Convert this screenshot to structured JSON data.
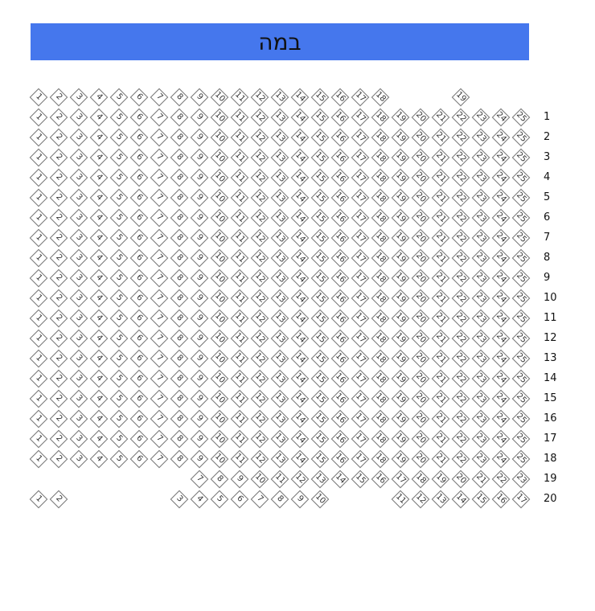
{
  "stage": {
    "label": "במה"
  },
  "rows": [
    {
      "label": "",
      "seats": [
        "1",
        "2",
        "3",
        "4",
        "5",
        "6",
        "7",
        "8",
        "9",
        "10",
        "11",
        "12",
        "13",
        "14",
        "15",
        "16",
        "17",
        "18",
        null,
        null,
        null,
        "19"
      ]
    },
    {
      "label": "1",
      "seats": [
        "1",
        "2",
        "3",
        "4",
        "5",
        "6",
        "7",
        "8",
        "9",
        "10",
        "11",
        "12",
        "13",
        "14",
        "15",
        "16",
        "17",
        "18",
        "19",
        "20",
        "21",
        "22",
        "23",
        "24",
        "25"
      ]
    },
    {
      "label": "2",
      "seats": [
        "1",
        "2",
        "3",
        "4",
        "5",
        "6",
        "7",
        "8",
        "9",
        "10",
        "11",
        "12",
        "13",
        "14",
        "15",
        "16",
        "17",
        "18",
        "19",
        "20",
        "21",
        "22",
        "23",
        "24",
        "25"
      ]
    },
    {
      "label": "3",
      "seats": [
        "1",
        "2",
        "3",
        "4",
        "5",
        "6",
        "7",
        "8",
        "9",
        "10",
        "11",
        "12",
        "13",
        "14",
        "15",
        "16",
        "17",
        "18",
        "19",
        "20",
        "21",
        "22",
        "23",
        "24",
        "25"
      ]
    },
    {
      "label": "4",
      "seats": [
        "1",
        "2",
        "3",
        "4",
        "5",
        "6",
        "7",
        "8",
        "9",
        "10",
        "11",
        "12",
        "13",
        "14",
        "15",
        "16",
        "17",
        "18",
        "19",
        "20",
        "21",
        "22",
        "23",
        "24",
        "25"
      ]
    },
    {
      "label": "5",
      "seats": [
        "1",
        "2",
        "3",
        "4",
        "5",
        "6",
        "7",
        "8",
        "9",
        "10",
        "11",
        "12",
        "13",
        "14",
        "15",
        "16",
        "17",
        "18",
        "19",
        "20",
        "21",
        "22",
        "23",
        "24",
        "25"
      ]
    },
    {
      "label": "6",
      "seats": [
        "1",
        "2",
        "3",
        "4",
        "5",
        "6",
        "7",
        "8",
        "9",
        "10",
        "11",
        "12",
        "13",
        "14",
        "15",
        "16",
        "17",
        "18",
        "19",
        "20",
        "21",
        "22",
        "23",
        "24",
        "25"
      ]
    },
    {
      "label": "7",
      "seats": [
        "1",
        "2",
        "3",
        "4",
        "5",
        "6",
        "7",
        "8",
        "9",
        "10",
        "11",
        "12",
        "13",
        "14",
        "15",
        "16",
        "17",
        "18",
        "19",
        "20",
        "21",
        "22",
        "23",
        "24",
        "25"
      ]
    },
    {
      "label": "8",
      "seats": [
        "1",
        "2",
        "3",
        "4",
        "5",
        "6",
        "7",
        "8",
        "9",
        "10",
        "11",
        "12",
        "13",
        "14",
        "15",
        "16",
        "17",
        "18",
        "19",
        "20",
        "21",
        "22",
        "23",
        "24",
        "25"
      ]
    },
    {
      "label": "9",
      "seats": [
        "1",
        "2",
        "3",
        "4",
        "5",
        "6",
        "7",
        "8",
        "9",
        "10",
        "11",
        "12",
        "13",
        "14",
        "15",
        "16",
        "17",
        "18",
        "19",
        "20",
        "21",
        "22",
        "23",
        "24",
        "25"
      ]
    },
    {
      "label": "10",
      "seats": [
        "1",
        "2",
        "3",
        "4",
        "5",
        "6",
        "7",
        "8",
        "9",
        "10",
        "11",
        "12",
        "13",
        "14",
        "15",
        "16",
        "17",
        "18",
        "19",
        "20",
        "21",
        "22",
        "23",
        "24",
        "25"
      ]
    },
    {
      "label": "11",
      "seats": [
        "1",
        "2",
        "3",
        "4",
        "5",
        "6",
        "7",
        "8",
        "9",
        "10",
        "11",
        "12",
        "13",
        "14",
        "15",
        "16",
        "17",
        "18",
        "19",
        "20",
        "21",
        "22",
        "23",
        "24",
        "25"
      ]
    },
    {
      "label": "12",
      "seats": [
        "1",
        "2",
        "3",
        "4",
        "5",
        "6",
        "7",
        "8",
        "9",
        "10",
        "11",
        "12",
        "13",
        "14",
        "15",
        "16",
        "17",
        "18",
        "19",
        "20",
        "21",
        "22",
        "23",
        "24",
        "25"
      ]
    },
    {
      "label": "13",
      "seats": [
        "1",
        "2",
        "3",
        "4",
        "5",
        "6",
        "7",
        "8",
        "9",
        "10",
        "11",
        "12",
        "13",
        "14",
        "15",
        "16",
        "17",
        "18",
        "19",
        "20",
        "21",
        "22",
        "23",
        "24",
        "25"
      ]
    },
    {
      "label": "14",
      "seats": [
        "1",
        "2",
        "3",
        "4",
        "5",
        "6",
        "7",
        "8",
        "9",
        "10",
        "11",
        "12",
        "13",
        "14",
        "15",
        "16",
        "17",
        "18",
        "19",
        "20",
        "21",
        "22",
        "23",
        "24",
        "25"
      ]
    },
    {
      "label": "15",
      "seats": [
        "1",
        "2",
        "3",
        "4",
        "5",
        "6",
        "7",
        "8",
        "9",
        "10",
        "11",
        "12",
        "13",
        "14",
        "15",
        "16",
        "17",
        "18",
        "19",
        "20",
        "21",
        "22",
        "23",
        "24",
        "25"
      ]
    },
    {
      "label": "16",
      "seats": [
        "1",
        "2",
        "3",
        "4",
        "5",
        "6",
        "7",
        "8",
        "9",
        "10",
        "11",
        "12",
        "13",
        "14",
        "15",
        "16",
        "17",
        "18",
        "19",
        "20",
        "21",
        "22",
        "23",
        "24",
        "25"
      ]
    },
    {
      "label": "17",
      "seats": [
        "1",
        "2",
        "3",
        "4",
        "5",
        "6",
        "7",
        "8",
        "9",
        "10",
        "11",
        "12",
        "13",
        "14",
        "15",
        "16",
        "17",
        "18",
        "19",
        "20",
        "21",
        "22",
        "23",
        "24",
        "25"
      ]
    },
    {
      "label": "18",
      "seats": [
        "1",
        "2",
        "3",
        "4",
        "5",
        "6",
        "7",
        "8",
        "9",
        "10",
        "11",
        "12",
        "13",
        "14",
        "15",
        "16",
        "17",
        "18",
        "19",
        "20",
        "21",
        "22",
        "23",
        "24",
        "25"
      ]
    },
    {
      "label": "19",
      "seats": [
        null,
        null,
        null,
        null,
        null,
        null,
        null,
        null,
        "7",
        "8",
        "9",
        "10",
        "11",
        "12",
        "13",
        "14",
        "15",
        "16",
        "17",
        "18",
        "19",
        "20",
        "21",
        "22",
        "23"
      ]
    },
    {
      "label": "20",
      "seats": [
        "1",
        "2",
        null,
        null,
        null,
        null,
        null,
        "3",
        "4",
        "5",
        "6",
        "7",
        "8",
        "9",
        "10",
        null,
        null,
        null,
        "11",
        "12",
        "13",
        "14",
        "15",
        "16",
        "17"
      ]
    }
  ]
}
